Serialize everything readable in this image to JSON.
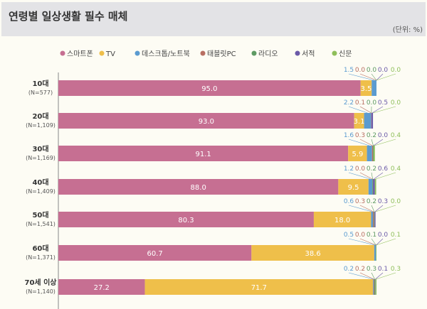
{
  "chart_data": {
    "type": "bar",
    "orientation": "horizontal",
    "stacked": true,
    "title": "연령별 일상생활 필수 매체",
    "unit_label": "(단위: %)",
    "categories": [
      {
        "label": "10대",
        "n": "(N=577)"
      },
      {
        "label": "20대",
        "n": "(N=1,109)"
      },
      {
        "label": "30대",
        "n": "(N=1,169)"
      },
      {
        "label": "40대",
        "n": "(N=1,409)"
      },
      {
        "label": "50대",
        "n": "(N=1,541)"
      },
      {
        "label": "60대",
        "n": "(N=1,371)"
      },
      {
        "label": "70세 이상",
        "n": "(N=1,140)"
      }
    ],
    "series": [
      {
        "name": "스마트폰",
        "color": "#c66f92",
        "values": [
          95.0,
          93.0,
          91.1,
          88.0,
          80.3,
          60.7,
          27.2
        ]
      },
      {
        "name": "TV",
        "color": "#efbf4a",
        "values": [
          3.5,
          3.1,
          5.9,
          9.5,
          18.0,
          38.6,
          71.7
        ]
      },
      {
        "name": "데스크톱/노트북",
        "color": "#5b9bd0",
        "values": [
          1.5,
          2.2,
          1.6,
          1.2,
          0.6,
          0.5,
          0.2
        ]
      },
      {
        "name": "태블릿PC",
        "color": "#b86f62",
        "values": [
          0.0,
          0.1,
          0.3,
          0.0,
          0.3,
          0.0,
          0.2
        ]
      },
      {
        "name": "라디오",
        "color": "#5e9a63",
        "values": [
          0.0,
          0.0,
          0.2,
          0.2,
          0.2,
          0.1,
          0.3
        ]
      },
      {
        "name": "서적",
        "color": "#6b5aa8",
        "values": [
          0.0,
          0.5,
          0.0,
          0.6,
          0.3,
          0.0,
          0.1
        ]
      },
      {
        "name": "신문",
        "color": "#8fbf5a",
        "values": [
          0.0,
          0.0,
          0.4,
          0.4,
          0.0,
          0.1,
          0.3
        ]
      }
    ],
    "xlim": [
      0,
      100
    ]
  }
}
